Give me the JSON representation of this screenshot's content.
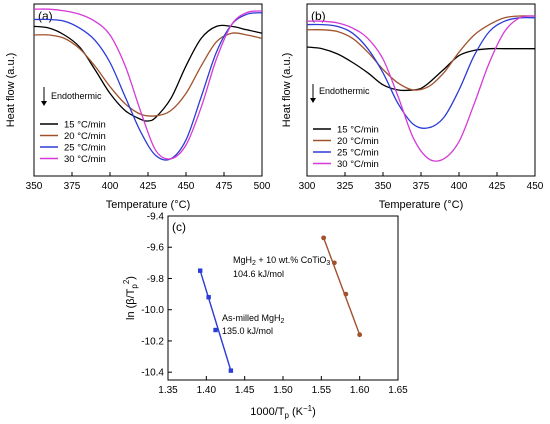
{
  "chart_data": [
    {
      "type": "line",
      "panel_label": "(a)",
      "xlabel": "Temperature (°C)",
      "ylabel": "Heat flow (a.u.)",
      "xlim": [
        350,
        500
      ],
      "x_ticks": [
        350,
        375,
        400,
        425,
        450,
        475,
        500
      ],
      "annotation": "Endothermic",
      "grid": false,
      "legend_position": "bottom-left",
      "series": [
        {
          "name": "15 °C/min",
          "color": "#000000",
          "x": [
            350,
            360,
            370,
            380,
            390,
            400,
            410,
            420,
            425,
            430,
            440,
            450,
            460,
            470,
            480,
            490,
            500
          ],
          "y": [
            0.87,
            0.86,
            0.82,
            0.75,
            0.62,
            0.48,
            0.38,
            0.33,
            0.32,
            0.34,
            0.45,
            0.64,
            0.8,
            0.87,
            0.87,
            0.85,
            0.83
          ]
        },
        {
          "name": "20 °C/min",
          "color": "#a0522d",
          "x": [
            350,
            360,
            370,
            380,
            390,
            400,
            410,
            420,
            430,
            440,
            450,
            460,
            470,
            480,
            490,
            500
          ],
          "y": [
            0.82,
            0.82,
            0.8,
            0.74,
            0.64,
            0.52,
            0.42,
            0.36,
            0.35,
            0.38,
            0.48,
            0.64,
            0.78,
            0.83,
            0.82,
            0.8
          ]
        },
        {
          "name": "25 °C/min",
          "color": "#2b3bd6",
          "x": [
            350,
            360,
            370,
            380,
            390,
            400,
            410,
            420,
            430,
            440,
            450,
            460,
            470,
            480,
            490,
            500
          ],
          "y": [
            0.91,
            0.91,
            0.9,
            0.86,
            0.79,
            0.66,
            0.46,
            0.26,
            0.12,
            0.1,
            0.21,
            0.46,
            0.72,
            0.88,
            0.94,
            0.95
          ]
        },
        {
          "name": "30 °C/min",
          "color": "#d63ad6",
          "x": [
            350,
            360,
            370,
            380,
            390,
            400,
            410,
            420,
            430,
            440,
            450,
            460,
            470,
            480,
            490,
            500
          ],
          "y": [
            0.97,
            0.97,
            0.96,
            0.94,
            0.9,
            0.82,
            0.64,
            0.38,
            0.15,
            0.1,
            0.18,
            0.4,
            0.68,
            0.88,
            0.95,
            0.96
          ]
        }
      ]
    },
    {
      "type": "line",
      "panel_label": "(b)",
      "xlabel": "Temperature (°C)",
      "ylabel": "Heat flow (a.u.)",
      "xlim": [
        300,
        450
      ],
      "x_ticks": [
        300,
        325,
        350,
        375,
        400,
        425,
        450
      ],
      "annotation": "Endothermic",
      "grid": false,
      "legend_position": "bottom-left",
      "series": [
        {
          "name": "15 °C/min",
          "color": "#000000",
          "x": [
            300,
            310,
            320,
            330,
            340,
            350,
            360,
            370,
            375,
            380,
            390,
            400,
            410,
            420,
            430,
            440,
            450
          ],
          "y": [
            0.75,
            0.74,
            0.71,
            0.66,
            0.6,
            0.53,
            0.5,
            0.5,
            0.51,
            0.54,
            0.62,
            0.7,
            0.73,
            0.74,
            0.74,
            0.74,
            0.74
          ]
        },
        {
          "name": "20 °C/min",
          "color": "#a0522d",
          "x": [
            300,
            310,
            320,
            330,
            340,
            350,
            360,
            370,
            380,
            390,
            400,
            410,
            420,
            430,
            440,
            450
          ],
          "y": [
            0.85,
            0.85,
            0.84,
            0.8,
            0.72,
            0.62,
            0.54,
            0.5,
            0.52,
            0.6,
            0.72,
            0.82,
            0.88,
            0.92,
            0.93,
            0.93
          ]
        },
        {
          "name": "25 °C/min",
          "color": "#2b3bd6",
          "x": [
            300,
            310,
            320,
            330,
            340,
            350,
            360,
            370,
            380,
            390,
            400,
            410,
            420,
            430,
            440,
            450
          ],
          "y": [
            0.88,
            0.88,
            0.87,
            0.83,
            0.74,
            0.6,
            0.42,
            0.3,
            0.28,
            0.34,
            0.5,
            0.7,
            0.84,
            0.9,
            0.92,
            0.92
          ]
        },
        {
          "name": "30 °C/min",
          "color": "#d63ad6",
          "x": [
            300,
            310,
            320,
            330,
            340,
            350,
            360,
            370,
            380,
            390,
            400,
            410,
            420,
            430,
            440,
            450
          ],
          "y": [
            0.9,
            0.9,
            0.89,
            0.86,
            0.8,
            0.68,
            0.46,
            0.22,
            0.1,
            0.1,
            0.2,
            0.42,
            0.66,
            0.84,
            0.92,
            0.93
          ]
        }
      ]
    },
    {
      "type": "scatter",
      "panel_label": "(c)",
      "xlabel": "1000/T",
      "xlabel_sub": "p",
      "xlabel_unit": " (K",
      "xlabel_sup": "−1",
      "xlabel_end": ")",
      "ylabel_text": "ln (β/T",
      "ylabel_sub": "p",
      "ylabel_sup": "2",
      "ylabel_end": ")",
      "xlim": [
        1.35,
        1.65
      ],
      "ylim": [
        -10.45,
        -9.4
      ],
      "x_ticks": [
        1.35,
        1.4,
        1.45,
        1.5,
        1.55,
        1.6,
        1.65
      ],
      "y_ticks": [
        -10.4,
        -10.2,
        -10.0,
        -9.8,
        -9.6,
        -9.4
      ],
      "x_tick_labels": [
        "1.35",
        "1.40",
        "1.45",
        "1.50",
        "1.55",
        "1.60",
        "1.65"
      ],
      "y_tick_labels": [
        "-10.4",
        "-10.2",
        "-10.0",
        "-9.8",
        "-9.6",
        "-9.4"
      ],
      "grid": false,
      "series": [
        {
          "name": "As-milled MgH2",
          "color": "#2b3bd6",
          "marker": "square",
          "x": [
            1.392,
            1.403,
            1.412,
            1.432
          ],
          "y": [
            -9.75,
            -9.92,
            -10.13,
            -10.39
          ],
          "fit": [
            [
              1.392,
              -9.75
            ],
            [
              1.432,
              -10.39
            ]
          ]
        },
        {
          "name": "MgH2 + 10 wt.% CoTiO3",
          "color": "#a0522d",
          "marker": "circle",
          "x": [
            1.553,
            1.567,
            1.582,
            1.6
          ],
          "y": [
            -9.54,
            -9.7,
            -9.9,
            -10.16
          ],
          "fit": [
            [
              1.553,
              -9.54
            ],
            [
              1.6,
              -10.16
            ]
          ]
        }
      ],
      "annotations": {
        "composite_prefix": "MgH",
        "composite_sub": "2",
        "composite_mid": " + 10 wt.% CoTiO",
        "composite_sub2": "3",
        "composite_energy": "104.6 kJ/mol",
        "milled_prefix": "As-milled MgH",
        "milled_sub": "2",
        "milled_energy": "135.0 kJ/mol"
      }
    }
  ]
}
